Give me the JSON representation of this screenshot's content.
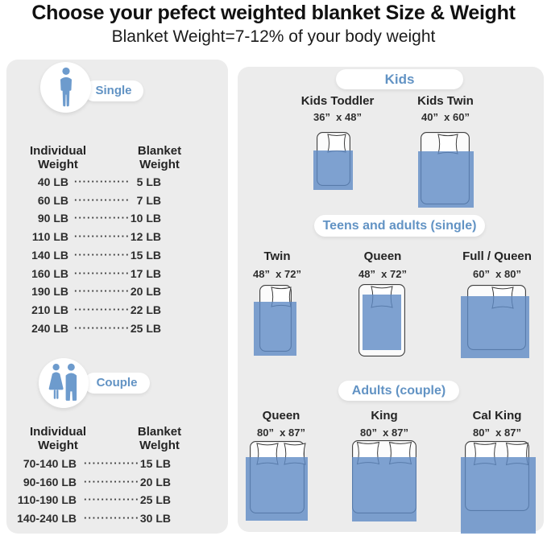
{
  "header": {
    "title": "Choose your pefect weighted blanket Size & Weight",
    "subtitle": "Blanket Weight=7-12% of your body weight"
  },
  "tables": {
    "single": {
      "label": "Single",
      "columns": [
        "Individual Weight",
        "Blanket Weight"
      ],
      "dots": "·············",
      "rows": [
        [
          "40 LB",
          "5 LB"
        ],
        [
          "60 LB",
          "7 LB"
        ],
        [
          "90 LB",
          "10 LB"
        ],
        [
          "110 LB",
          "12 LB"
        ],
        [
          "140 LB",
          "15 LB"
        ],
        [
          "160 LB",
          "17 LB"
        ],
        [
          "190 LB",
          "20 LB"
        ],
        [
          "210 LB",
          "22 LB"
        ],
        [
          "240 LB",
          "25 LB"
        ]
      ]
    },
    "couple": {
      "label": "Couple",
      "columns": [
        "Individual Weight",
        "Blanket Welght"
      ],
      "dots": "·············",
      "rows": [
        [
          "70-140 LB",
          "15 LB"
        ],
        [
          "90-160 LB",
          "20 LB"
        ],
        [
          "110-190 LB",
          "25 LB"
        ],
        [
          "140-240 LB",
          "30 LB"
        ]
      ]
    }
  },
  "sections": [
    {
      "id": "kids",
      "label": "Kids",
      "beds": [
        {
          "name": "Kids Toddler",
          "dims": "36”  x 48”"
        },
        {
          "name": "Kids Twin",
          "dims": "40”  x 60”"
        }
      ]
    },
    {
      "id": "teens",
      "label": "Teens and adults (single)",
      "beds": [
        {
          "name": "Twin",
          "dims": "48”  x 72”"
        },
        {
          "name": "Queen",
          "dims": "48”  x 72”"
        },
        {
          "name": "Full / Queen",
          "dims": "60”  x 80”"
        }
      ]
    },
    {
      "id": "adults",
      "label": "Adults (couple)",
      "beds": [
        {
          "name": "Queen",
          "dims": "80”  x 87”"
        },
        {
          "name": "King",
          "dims": "80”  x 87”"
        },
        {
          "name": "Cal King",
          "dims": "80”  x 87”"
        }
      ]
    }
  ],
  "colors": {
    "accent_blue": "#6293c4",
    "figure_blue": "#6d9bcd",
    "blanket_blue": "#5f8bc6",
    "panel_gray": "#ececec"
  }
}
